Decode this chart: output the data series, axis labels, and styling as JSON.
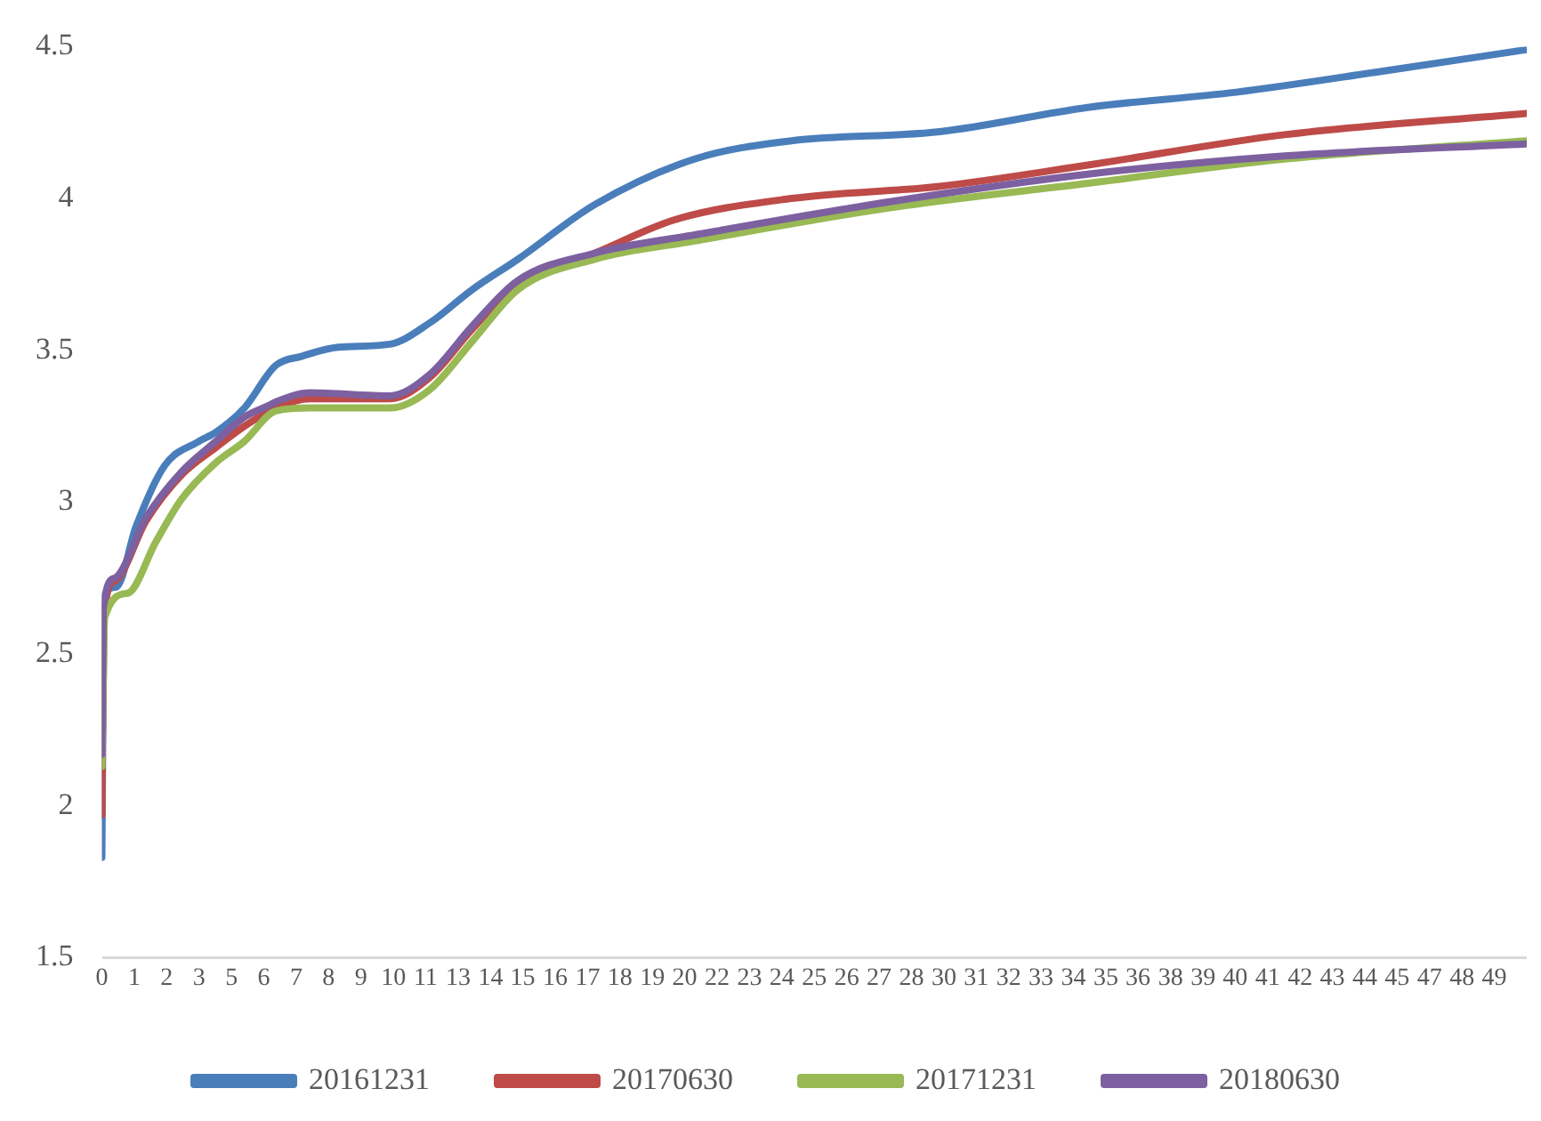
{
  "chart_data": {
    "type": "line",
    "xlim": [
      0,
      50
    ],
    "xticks": [
      {
        "value": 0,
        "label": "0"
      },
      {
        "value": 1.14,
        "label": "1"
      },
      {
        "value": 2.27,
        "label": "2"
      },
      {
        "value": 3.41,
        "label": "3"
      },
      {
        "value": 4.55,
        "label": "5"
      },
      {
        "value": 5.68,
        "label": "6"
      },
      {
        "value": 6.82,
        "label": "7"
      },
      {
        "value": 7.95,
        "label": "8"
      },
      {
        "value": 9.09,
        "label": "9"
      },
      {
        "value": 10.23,
        "label": "10"
      },
      {
        "value": 11.36,
        "label": "11"
      },
      {
        "value": 12.5,
        "label": "13"
      },
      {
        "value": 13.64,
        "label": "14"
      },
      {
        "value": 14.77,
        "label": "15"
      },
      {
        "value": 15.91,
        "label": "16"
      },
      {
        "value": 17.05,
        "label": "17"
      },
      {
        "value": 18.18,
        "label": "18"
      },
      {
        "value": 19.32,
        "label": "19"
      },
      {
        "value": 20.45,
        "label": "20"
      },
      {
        "value": 21.59,
        "label": "22"
      },
      {
        "value": 22.73,
        "label": "23"
      },
      {
        "value": 23.86,
        "label": "24"
      },
      {
        "value": 25,
        "label": "25"
      },
      {
        "value": 26.14,
        "label": "26"
      },
      {
        "value": 27.27,
        "label": "27"
      },
      {
        "value": 28.41,
        "label": "28"
      },
      {
        "value": 29.55,
        "label": "30"
      },
      {
        "value": 30.68,
        "label": "31"
      },
      {
        "value": 31.82,
        "label": "32"
      },
      {
        "value": 32.95,
        "label": "33"
      },
      {
        "value": 34.09,
        "label": "34"
      },
      {
        "value": 35.23,
        "label": "35"
      },
      {
        "value": 36.36,
        "label": "36"
      },
      {
        "value": 37.5,
        "label": "38"
      },
      {
        "value": 38.64,
        "label": "39"
      },
      {
        "value": 39.77,
        "label": "40"
      },
      {
        "value": 40.91,
        "label": "41"
      },
      {
        "value": 42.05,
        "label": "42"
      },
      {
        "value": 43.18,
        "label": "43"
      },
      {
        "value": 44.32,
        "label": "44"
      },
      {
        "value": 45.45,
        "label": "45"
      },
      {
        "value": 46.59,
        "label": "47"
      },
      {
        "value": 47.73,
        "label": "48"
      },
      {
        "value": 48.86,
        "label": "49"
      }
    ],
    "ylim": [
      1.5,
      4.5
    ],
    "yticks": [
      1.5,
      2,
      2.5,
      3,
      3.5,
      4,
      4.5
    ],
    "grid": false,
    "legend": "bottom",
    "marker": "none",
    "line_style": "solid",
    "series": [
      {
        "name": "20161231",
        "color": "#4a7ebb",
        "x": [
          0,
          0.08,
          0.5,
          1.2,
          2.2,
          3.4,
          4.0,
          5.0,
          6.1,
          7.0,
          8.3,
          10.1,
          11.5,
          13.0,
          14.6,
          17.3,
          20.8,
          24.2,
          29.4,
          34.6,
          39.8,
          45,
          50
        ],
        "values": [
          1.83,
          2.69,
          2.72,
          2.92,
          3.12,
          3.2,
          3.23,
          3.31,
          3.45,
          3.48,
          3.51,
          3.52,
          3.59,
          3.7,
          3.8,
          3.98,
          4.13,
          4.19,
          4.22,
          4.3,
          4.35,
          4.42,
          4.49
        ]
      },
      {
        "name": "20170630",
        "color": "#be4b48",
        "x": [
          0,
          0.05,
          0.45,
          1.56,
          2.8,
          4.0,
          5.0,
          6.1,
          7.3,
          10.1,
          11.5,
          13.0,
          14.6,
          17.3,
          20.1,
          24.2,
          29.4,
          34.6,
          41.5,
          50
        ],
        "values": [
          1.97,
          2.6,
          2.74,
          2.94,
          3.09,
          3.18,
          3.25,
          3.31,
          3.34,
          3.34,
          3.41,
          3.57,
          3.72,
          3.82,
          3.93,
          4.0,
          4.04,
          4.11,
          4.21,
          4.28
        ]
      },
      {
        "name": "20171231",
        "color": "#98b954",
        "x": [
          0,
          0.1,
          0.9,
          1.9,
          2.8,
          4.0,
          5.0,
          6.1,
          7.3,
          10.1,
          11.5,
          13.0,
          14.6,
          17.3,
          20.8,
          27.7,
          34.6,
          41.5,
          50
        ],
        "values": [
          2.13,
          2.62,
          2.7,
          2.87,
          3.01,
          3.13,
          3.2,
          3.3,
          3.31,
          3.31,
          3.37,
          3.53,
          3.7,
          3.8,
          3.86,
          3.97,
          4.05,
          4.13,
          4.19
        ]
      },
      {
        "name": "20180630",
        "color": "#7d60a0",
        "x": [
          0,
          0.05,
          0.45,
          1.56,
          2.8,
          4.0,
          5.0,
          5.9,
          6.1,
          7.3,
          10.1,
          11.5,
          13.0,
          14.6,
          17.3,
          20.8,
          27.7,
          34.6,
          41.5,
          50
        ],
        "values": [
          2.17,
          2.65,
          2.75,
          2.95,
          3.1,
          3.2,
          3.28,
          3.32,
          3.33,
          3.36,
          3.35,
          3.42,
          3.58,
          3.73,
          3.82,
          3.88,
          3.99,
          4.08,
          4.14,
          4.18
        ]
      }
    ]
  }
}
